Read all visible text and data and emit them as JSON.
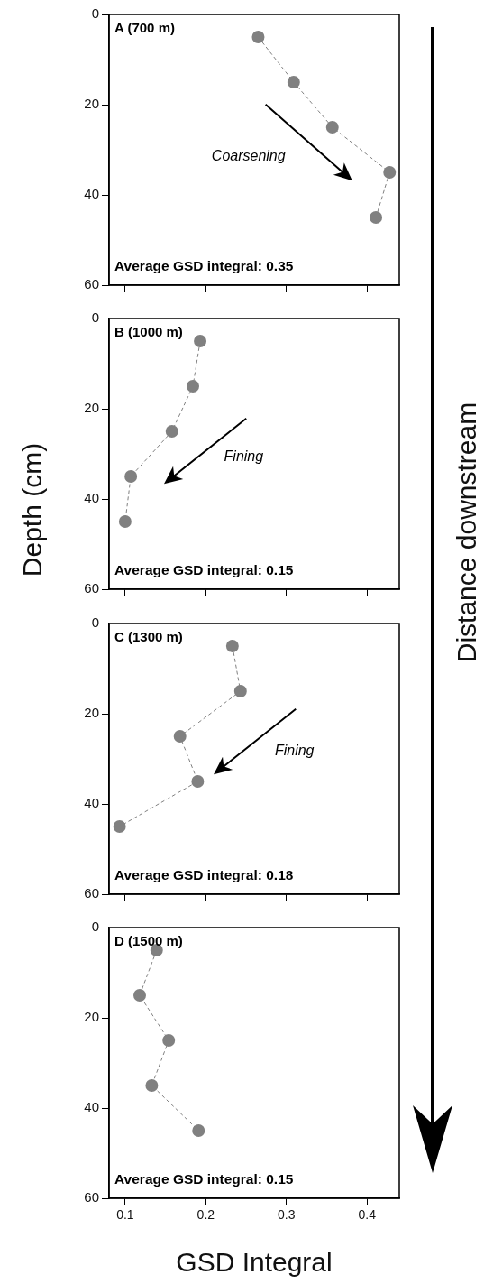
{
  "chart_data": [
    {
      "type": "line",
      "title": "A (700 m)",
      "ylabel": "Depth (cm)",
      "annotations": [
        "Average GSD integral: 0.35",
        "Coarsening",
        "Distance downstream"
      ],
      "series": [
        {
          "color": "#808080",
          "x": [
            0.265,
            0.309,
            0.357,
            0.428,
            0.411
          ],
          "values": [
            5,
            15,
            25,
            35,
            45
          ]
        }
      ],
      "xlim": [
        0.08,
        0.44
      ],
      "xticks": [
        0.1,
        0.2,
        0.3,
        0.4
      ],
      "ylim": [
        60,
        0
      ],
      "yticks": [
        0,
        20,
        40,
        60
      ],
      "tick_labels": "y",
      "marker": "circle",
      "line_style": "dashed"
    },
    {
      "type": "line",
      "title": "B (1000 m)",
      "annotations": [
        "Average GSD integral: 0.15",
        "Fining"
      ],
      "series": [
        {
          "color": "#808080",
          "x": [
            0.193,
            0.184,
            0.158,
            0.107,
            0.1
          ],
          "values": [
            5,
            15,
            25,
            35,
            45
          ]
        }
      ],
      "xlim": [
        0.08,
        0.44
      ],
      "xticks": [
        0.1,
        0.2,
        0.3,
        0.4
      ],
      "ylim": [
        60,
        0
      ],
      "yticks": [
        0,
        20,
        40,
        60
      ],
      "tick_labels": "y",
      "marker": "circle",
      "line_style": "dashed"
    },
    {
      "type": "line",
      "title": "C (1300 m)",
      "annotations": [
        "Average GSD integral: 0.18",
        "Fining"
      ],
      "series": [
        {
          "color": "#808080",
          "x": [
            0.233,
            0.243,
            0.168,
            0.19,
            0.093
          ],
          "values": [
            5,
            15,
            25,
            35,
            45
          ]
        }
      ],
      "xlim": [
        0.08,
        0.44
      ],
      "xticks": [
        0.1,
        0.2,
        0.3,
        0.4
      ],
      "ylim": [
        60,
        0
      ],
      "yticks": [
        0,
        20,
        40,
        60
      ],
      "tick_labels": "y",
      "marker": "circle",
      "line_style": "dashed"
    },
    {
      "type": "line",
      "title": "D (1500 m)",
      "xlabel": "GSD Integral",
      "annotations": [
        "Average GSD integral: 0.15"
      ],
      "series": [
        {
          "color": "#808080",
          "x": [
            0.139,
            0.118,
            0.154,
            0.133,
            0.191
          ],
          "values": [
            5,
            15,
            25,
            35,
            45
          ]
        }
      ],
      "xlim": [
        0.08,
        0.44
      ],
      "xticks": [
        0.1,
        0.2,
        0.3,
        0.4
      ],
      "ylim": [
        60,
        0
      ],
      "yticks": [
        0,
        20,
        40,
        60
      ],
      "marker": "circle",
      "line_style": "dashed"
    }
  ]
}
